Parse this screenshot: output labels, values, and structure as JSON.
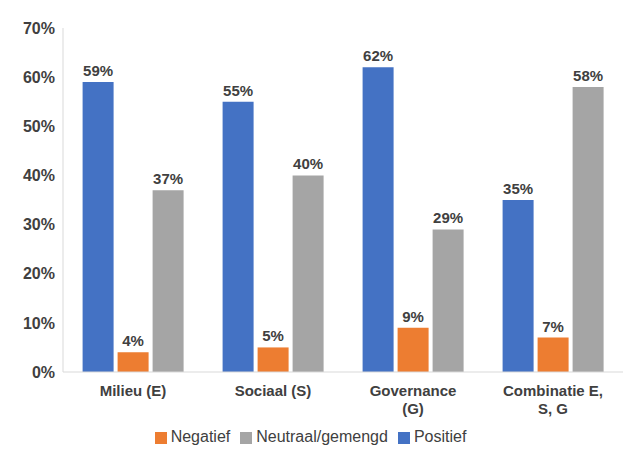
{
  "chart_data": {
    "type": "bar",
    "categories": [
      "Milieu (E)",
      "Sociaal (S)",
      "Governance (G)",
      "Combinatie E, S, G"
    ],
    "series": [
      {
        "name": "Positief",
        "color": "#4472c4",
        "values": [
          59,
          55,
          62,
          35
        ],
        "value_labels": [
          "59%",
          "55%",
          "62%",
          "35%"
        ]
      },
      {
        "name": "Negatief",
        "color": "#ed7d31",
        "values": [
          4,
          5,
          9,
          7
        ],
        "value_labels": [
          "4%",
          "5%",
          "9%",
          "7%"
        ]
      },
      {
        "name": "Neutraal/gemengd",
        "color": "#a5a5a5",
        "values": [
          37,
          40,
          29,
          58
        ],
        "value_labels": [
          "37%",
          "40%",
          "29%",
          "58%"
        ]
      }
    ],
    "ylim": [
      0,
      70
    ],
    "yticks": [
      {
        "value": 0,
        "label": "0%"
      },
      {
        "value": 10,
        "label": "10%"
      },
      {
        "value": 20,
        "label": "20%"
      },
      {
        "value": 30,
        "label": "30%"
      },
      {
        "value": 40,
        "label": "40%"
      },
      {
        "value": 50,
        "label": "50%"
      },
      {
        "value": 60,
        "label": "60%"
      },
      {
        "value": 70,
        "label": "70%"
      }
    ],
    "grid": false,
    "legend": "bottom",
    "data_labels": true
  }
}
